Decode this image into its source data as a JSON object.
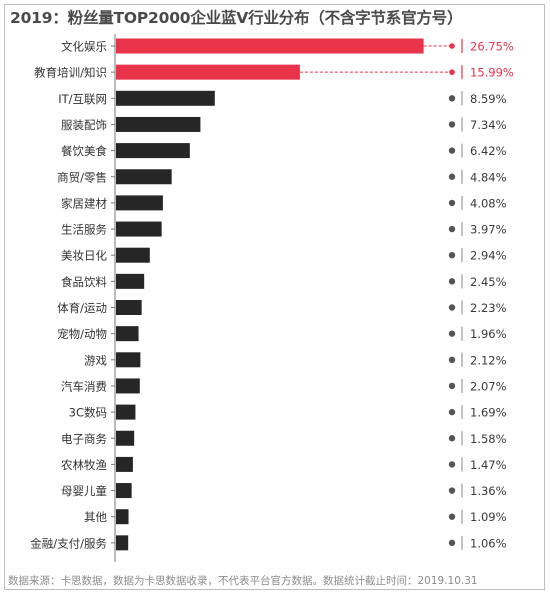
{
  "chart_data": {
    "type": "bar",
    "orientation": "horizontal",
    "title": "2019：粉丝量TOP2000企业蓝V行业分布（不含字节系官方号）",
    "categories": [
      "文化娱乐",
      "教育培训/知识",
      "IT/互联网",
      "服装配饰",
      "餐饮美食",
      "商贸/零售",
      "家居建材",
      "生活服务",
      "美妆日化",
      "食品饮料",
      "体育/运动",
      "宠物/动物",
      "游戏",
      "汽车消费",
      "3C数码",
      "电子商务",
      "农林牧渔",
      "母婴儿童",
      "其他",
      "金融/支付/服务"
    ],
    "values": [
      26.75,
      15.99,
      8.59,
      7.34,
      6.42,
      4.84,
      4.08,
      3.97,
      2.94,
      2.45,
      2.23,
      1.96,
      2.12,
      2.07,
      1.69,
      1.58,
      1.47,
      1.36,
      1.09,
      1.06
    ],
    "value_labels": [
      "26.75%",
      "15.99%",
      "8.59%",
      "7.34%",
      "6.42%",
      "4.84%",
      "4.08%",
      "3.97%",
      "2.94%",
      "2.45%",
      "2.23%",
      "1.96%",
      "2.12%",
      "2.07%",
      "1.69%",
      "1.58%",
      "1.47%",
      "1.36%",
      "1.09%",
      "1.06%"
    ],
    "highlight_count": 2,
    "xlabel": "",
    "ylabel": "",
    "xlim": [
      0,
      30
    ],
    "grid": false,
    "legend": "none",
    "colors": {
      "highlight": "#e8334a",
      "normal": "#262626",
      "highlight_text": "#e8334a",
      "normal_text": "#3a3a3a",
      "divider": "#9a9a9a"
    },
    "source": "数据来源：卡思数据，数据为卡思数据收录，不代表平台官方数据。数据统计截止时间：2019.10.31"
  }
}
